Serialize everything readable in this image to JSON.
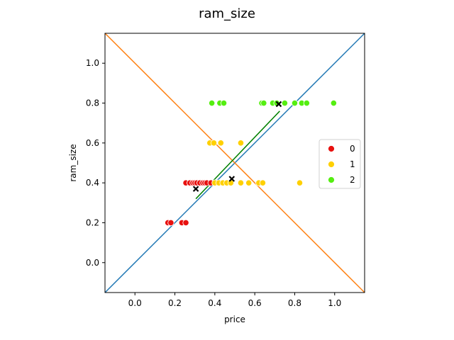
{
  "chart_data": {
    "type": "scatter",
    "title": "ram_size",
    "xlabel": "price",
    "ylabel": "ram_size",
    "xlim": [
      -0.15,
      1.15
    ],
    "ylim": [
      -0.15,
      1.15
    ],
    "xticks": [
      "0.0",
      "0.2",
      "0.4",
      "0.6",
      "0.8",
      "1.0"
    ],
    "yticks": [
      "0.0",
      "0.2",
      "0.4",
      "0.6",
      "0.8",
      "1.0"
    ],
    "grid": false,
    "legend_position": "right",
    "series": [
      {
        "name": "0",
        "color": "#e8110f",
        "points": [
          [
            0.165,
            0.2
          ],
          [
            0.18,
            0.2
          ],
          [
            0.235,
            0.2
          ],
          [
            0.255,
            0.2
          ],
          [
            0.255,
            0.4
          ],
          [
            0.275,
            0.4
          ],
          [
            0.29,
            0.4
          ],
          [
            0.3,
            0.4
          ],
          [
            0.31,
            0.4
          ],
          [
            0.325,
            0.4
          ],
          [
            0.34,
            0.4
          ],
          [
            0.35,
            0.4
          ],
          [
            0.36,
            0.4
          ],
          [
            0.38,
            0.4
          ]
        ]
      },
      {
        "name": "1",
        "color": "#ffd000",
        "points": [
          [
            0.375,
            0.6
          ],
          [
            0.395,
            0.6
          ],
          [
            0.43,
            0.6
          ],
          [
            0.53,
            0.6
          ],
          [
            0.4,
            0.4
          ],
          [
            0.42,
            0.4
          ],
          [
            0.44,
            0.4
          ],
          [
            0.46,
            0.4
          ],
          [
            0.48,
            0.4
          ],
          [
            0.53,
            0.4
          ],
          [
            0.57,
            0.4
          ],
          [
            0.62,
            0.4
          ],
          [
            0.64,
            0.4
          ],
          [
            0.825,
            0.4
          ]
        ]
      },
      {
        "name": "2",
        "color": "#55ee11",
        "points": [
          [
            0.385,
            0.8
          ],
          [
            0.425,
            0.8
          ],
          [
            0.445,
            0.8
          ],
          [
            0.635,
            0.8
          ],
          [
            0.645,
            0.8
          ],
          [
            0.69,
            0.8
          ],
          [
            0.71,
            0.8
          ],
          [
            0.75,
            0.8
          ],
          [
            0.8,
            0.8
          ],
          [
            0.835,
            0.8
          ],
          [
            0.86,
            0.8
          ],
          [
            0.995,
            0.8
          ]
        ]
      }
    ],
    "centroids": [
      [
        0.305,
        0.37
      ],
      [
        0.485,
        0.42
      ],
      [
        0.72,
        0.795
      ]
    ],
    "lines": [
      {
        "color": "#1f77b4",
        "points": [
          [
            -0.15,
            -0.15
          ],
          [
            1.15,
            1.15
          ]
        ]
      },
      {
        "color": "#ff7f0e",
        "points": [
          [
            -0.15,
            1.15
          ],
          [
            1.15,
            -0.15
          ]
        ]
      },
      {
        "color": "#008000",
        "points": [
          [
            0.305,
            0.32
          ],
          [
            0.725,
            0.76
          ]
        ]
      }
    ]
  }
}
